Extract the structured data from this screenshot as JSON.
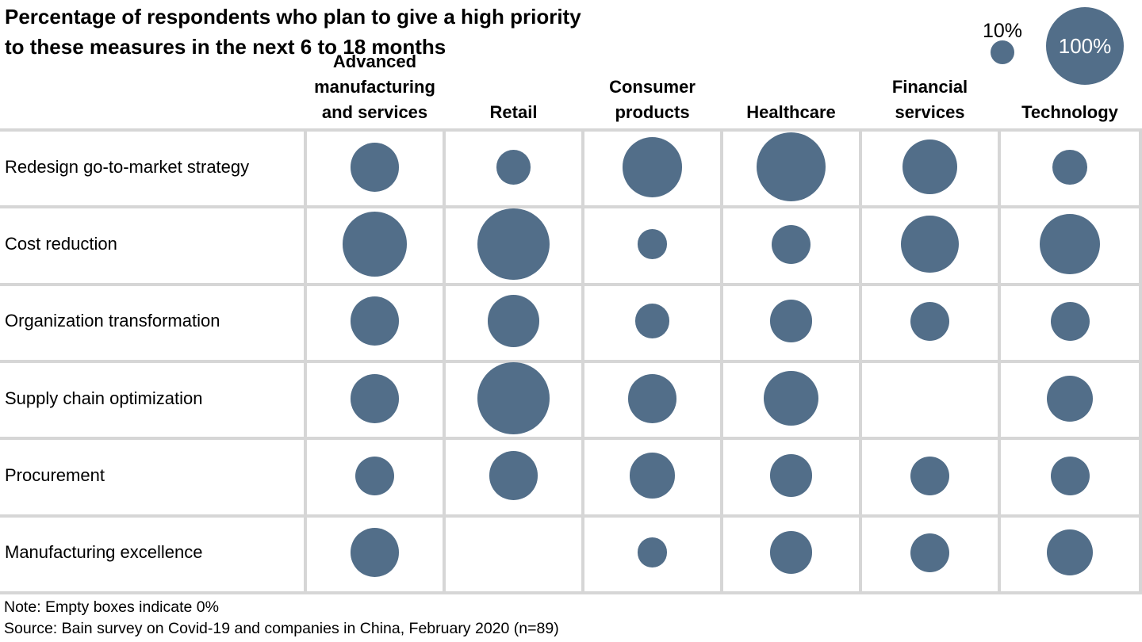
{
  "title": "Percentage of respondents who plan to give a high priority to these measures in the next 6 to 18 months",
  "legend": {
    "small_label": "10%",
    "small_value": 10,
    "large_label": "100%",
    "large_value": 100
  },
  "notes": {
    "note": "Note: Empty boxes indicate 0%",
    "source": "Source: Bain survey on Covid-19 and companies in China, February 2020 (n=89)"
  },
  "colors": {
    "bubble": "#526E89",
    "gridline": "#D6D6D6",
    "text": "#000000",
    "legend_text_inside": "#FFFFFF"
  },
  "chart_data": {
    "type": "bubble",
    "title": "Percentage of respondents who plan to give a high priority to these measures in the next 6 to 18 months",
    "unit": "percent",
    "columns": [
      "Advanced manufacturing and services",
      "Retail",
      "Consumer products",
      "Healthcare",
      "Financial services",
      "Technology"
    ],
    "series": [
      {
        "name": "Redesign go-to-market strategy",
        "values": [
          40,
          20,
          60,
          80,
          50,
          20
        ]
      },
      {
        "name": "Cost reduction",
        "values": [
          70,
          85,
          15,
          25,
          55,
          60
        ]
      },
      {
        "name": "Organization transformation",
        "values": [
          40,
          45,
          20,
          30,
          25,
          25
        ]
      },
      {
        "name": "Supply chain optimization",
        "values": [
          40,
          85,
          40,
          50,
          0,
          35
        ]
      },
      {
        "name": "Procurement",
        "values": [
          25,
          40,
          35,
          30,
          25,
          25
        ]
      },
      {
        "name": "Manufacturing excellence",
        "values": [
          40,
          0,
          15,
          30,
          25,
          35
        ]
      }
    ],
    "bubble_scale": {
      "area_proportional_to_value": true,
      "legend_values": [
        10,
        100
      ]
    },
    "empty_cell_meaning": "0%",
    "grid": "on",
    "legend_position": "top-right"
  }
}
